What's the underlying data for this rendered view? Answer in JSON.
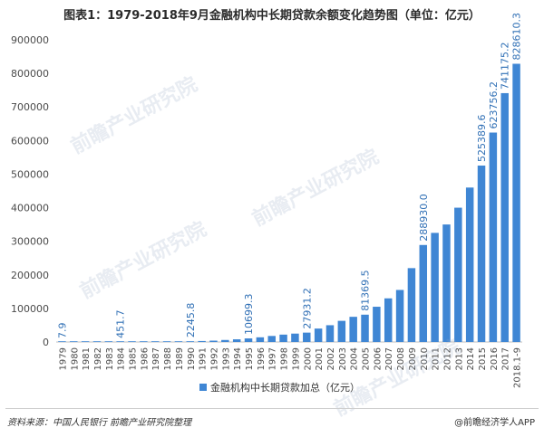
{
  "title": "图表1：1979-2018年9月金融机构中长期贷款余额变化趋势图（单位：亿元）",
  "source": "资料来源：中国人民银行  前瞻产业研究院整理",
  "brand": "@前瞻经济学人APP",
  "watermark": "前瞻产业研究院",
  "colors": {
    "bar": "#3f86d4",
    "axis_text": "#4a4a4a",
    "label": "#2f6fb5"
  },
  "chart_data": {
    "type": "bar",
    "title": "图表1：1979-2018年9月金融机构中长期贷款余额变化趋势图（单位：亿元）",
    "xlabel": "",
    "ylabel": "",
    "ylim": [
      0,
      900000
    ],
    "yticks": [
      0,
      100000,
      200000,
      300000,
      400000,
      500000,
      600000,
      700000,
      800000,
      900000
    ],
    "legend": "bottom",
    "series": [
      {
        "name": "金融机构中长期贷款加总（亿元）",
        "values": [
          7.9,
          60,
          110,
          170,
          240,
          451.7,
          650,
          900,
          1150,
          1450,
          1750,
          2245.8,
          2900,
          4000,
          6000,
          8000,
          10699.3,
          14000,
          18000,
          22000,
          25000,
          27931.2,
          40000,
          50000,
          63000,
          75000,
          81369.5,
          105000,
          130000,
          155000,
          220000,
          288930.0,
          325000,
          350000,
          400000,
          460000,
          525389.6,
          623756.2,
          741175.2,
          828610.3
        ]
      }
    ],
    "categories": [
      "1979",
      "1980",
      "1981",
      "1982",
      "1983",
      "1984",
      "1985",
      "1986",
      "1987",
      "1988",
      "1989",
      "1990",
      "1991",
      "1992",
      "1993",
      "1994",
      "1995",
      "1996",
      "1997",
      "1998",
      "1999",
      "2000",
      "2001",
      "2002",
      "2003",
      "2004",
      "2005",
      "2006",
      "2007",
      "2008",
      "2009",
      "2010",
      "2011",
      "2012",
      "2013",
      "2014",
      "2015",
      "2016",
      "2017",
      "2018.1-9"
    ],
    "value_labels": [
      {
        "category": "1979",
        "text": "7.9"
      },
      {
        "category": "1984",
        "text": "451.7"
      },
      {
        "category": "1990",
        "text": "2245.8"
      },
      {
        "category": "1995",
        "text": "10699.3"
      },
      {
        "category": "2000",
        "text": "27931.2"
      },
      {
        "category": "2005",
        "text": "81369.5"
      },
      {
        "category": "2010",
        "text": "288930.0"
      },
      {
        "category": "2015",
        "text": "525389.6"
      },
      {
        "category": "2016",
        "text": "623756.2"
      },
      {
        "category": "2017",
        "text": "741175.2"
      },
      {
        "category": "2018.1-9",
        "text": "828610.3"
      }
    ]
  }
}
